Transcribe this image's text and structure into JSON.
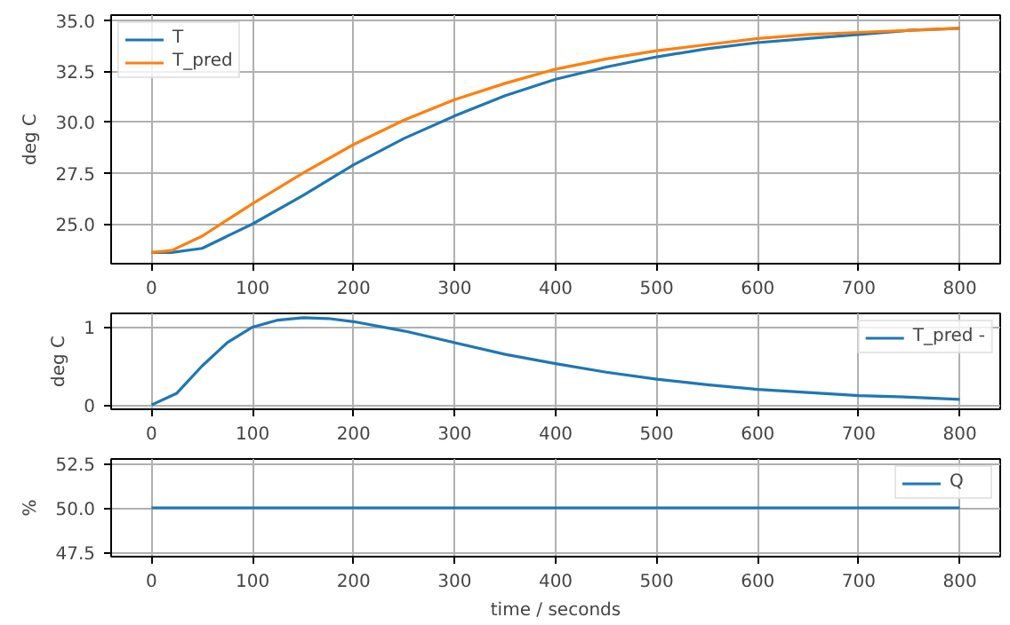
{
  "chart_data": [
    {
      "type": "line",
      "ylabel": "deg C",
      "x": [
        0,
        20,
        50,
        100,
        150,
        200,
        250,
        300,
        350,
        400,
        450,
        500,
        550,
        600,
        650,
        700,
        750,
        800
      ],
      "xlim": [
        -40,
        840
      ],
      "xticks": [
        0,
        100,
        200,
        300,
        400,
        500,
        600,
        700,
        800
      ],
      "ylim": [
        23.05,
        35.25
      ],
      "yticks": [
        {
          "value": 25,
          "label": "25.0"
        },
        27.5,
        {
          "value": 30,
          "label": "30.0"
        },
        32.5,
        {
          "value": 35,
          "label": "35.0"
        }
      ],
      "grid": true,
      "legend": "top left",
      "series": [
        {
          "name": "T",
          "color": "#1f77b4",
          "values": [
            23.6,
            23.6,
            23.8,
            25.0,
            26.4,
            27.9,
            29.2,
            30.3,
            31.3,
            32.1,
            32.7,
            33.2,
            33.6,
            33.9,
            34.1,
            34.3,
            34.5,
            34.6
          ]
        },
        {
          "name": "T_pred",
          "color": "#ff7f0e",
          "values": [
            23.6,
            23.7,
            24.4,
            26.0,
            27.5,
            28.9,
            30.1,
            31.1,
            31.9,
            32.6,
            33.1,
            33.5,
            33.8,
            34.1,
            34.3,
            34.4,
            34.5,
            34.6
          ]
        }
      ]
    },
    {
      "type": "line",
      "ylabel": "deg C",
      "x": [
        0,
        25,
        50,
        75,
        100,
        125,
        150,
        175,
        200,
        250,
        300,
        350,
        400,
        450,
        500,
        550,
        600,
        650,
        700,
        750,
        800
      ],
      "xlim": [
        -40,
        840
      ],
      "xticks": [
        0,
        100,
        200,
        300,
        400,
        500,
        600,
        700,
        800
      ],
      "ylim": [
        -0.056,
        1.176
      ],
      "yticks": [
        0,
        1
      ],
      "grid": true,
      "legend": "top right",
      "series": [
        {
          "name": "T_pred -",
          "color": "#1f77b4",
          "values": [
            0,
            0.15,
            0.5,
            0.8,
            1.0,
            1.09,
            1.12,
            1.11,
            1.07,
            0.95,
            0.8,
            0.65,
            0.53,
            0.42,
            0.33,
            0.26,
            0.2,
            0.16,
            0.12,
            0.1,
            0.07
          ]
        }
      ]
    },
    {
      "type": "line",
      "ylabel": "%",
      "xlabel": "time / seconds",
      "x": [
        0,
        800
      ],
      "xlim": [
        -40,
        840
      ],
      "xticks": [
        0,
        100,
        200,
        300,
        400,
        500,
        600,
        700,
        800
      ],
      "ylim": [
        47.25,
        52.75
      ],
      "yticks": [
        47.5,
        {
          "value": 50,
          "label": "50.0"
        },
        52.5
      ],
      "grid": true,
      "legend": "top right",
      "series": [
        {
          "name": "Q",
          "color": "#1f77b4",
          "values": [
            50,
            50
          ]
        }
      ]
    }
  ]
}
